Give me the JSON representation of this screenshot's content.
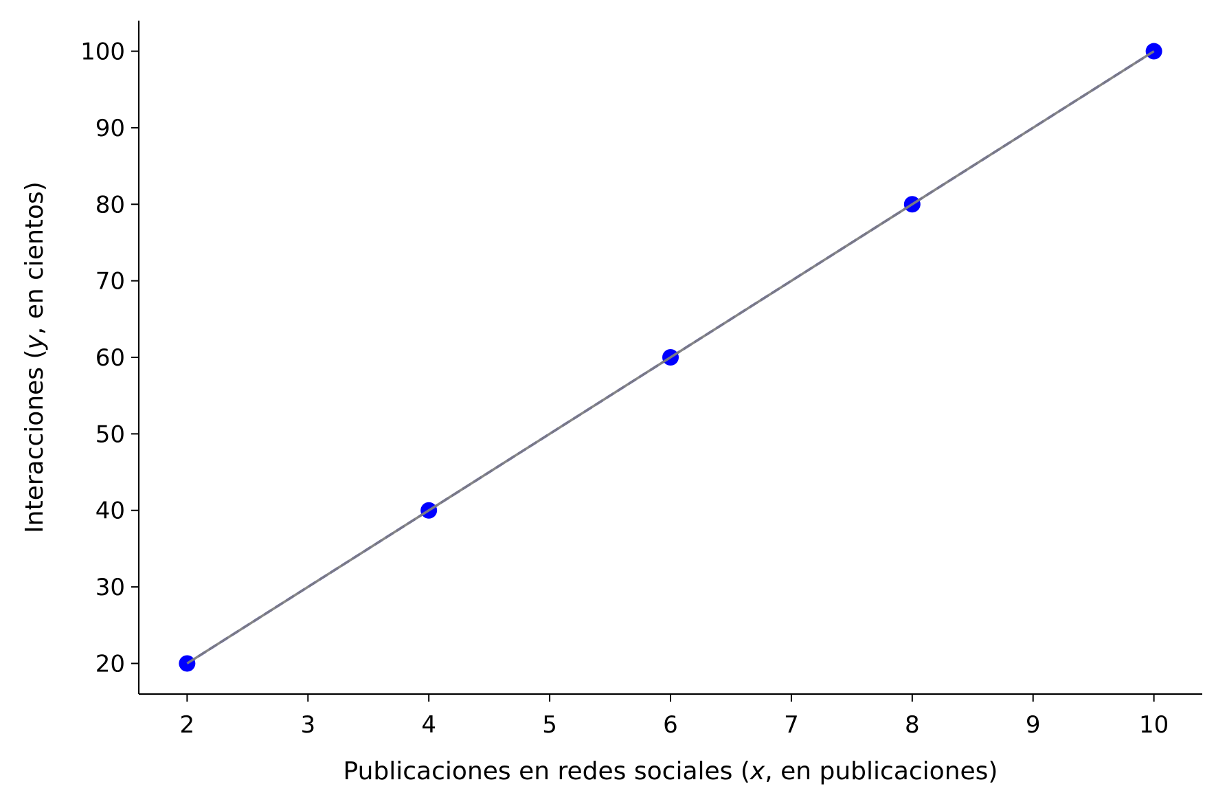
{
  "chart_data": {
    "type": "scatter",
    "title": "",
    "xlabel": {
      "before": "Publicaciones en redes sociales (",
      "var": "x",
      "after": ", en publicaciones)"
    },
    "ylabel": {
      "before": "Interacciones (",
      "var": "y",
      "after": ", en cientos)"
    },
    "xlim": [
      1.6,
      10.4
    ],
    "ylim": [
      16,
      104
    ],
    "xticks": [
      2,
      3,
      4,
      5,
      6,
      7,
      8,
      9,
      10
    ],
    "yticks": [
      20,
      30,
      40,
      50,
      60,
      70,
      80,
      90,
      100
    ],
    "grid": false,
    "series": [
      {
        "kind": "points+dashed-line",
        "color": "#0000ff",
        "x": [
          2,
          4,
          6,
          8,
          10
        ],
        "y": [
          20,
          40,
          60,
          80,
          100
        ]
      },
      {
        "kind": "line",
        "color": "#808080",
        "x": [
          2,
          10
        ],
        "y": [
          20,
          100
        ]
      }
    ]
  }
}
